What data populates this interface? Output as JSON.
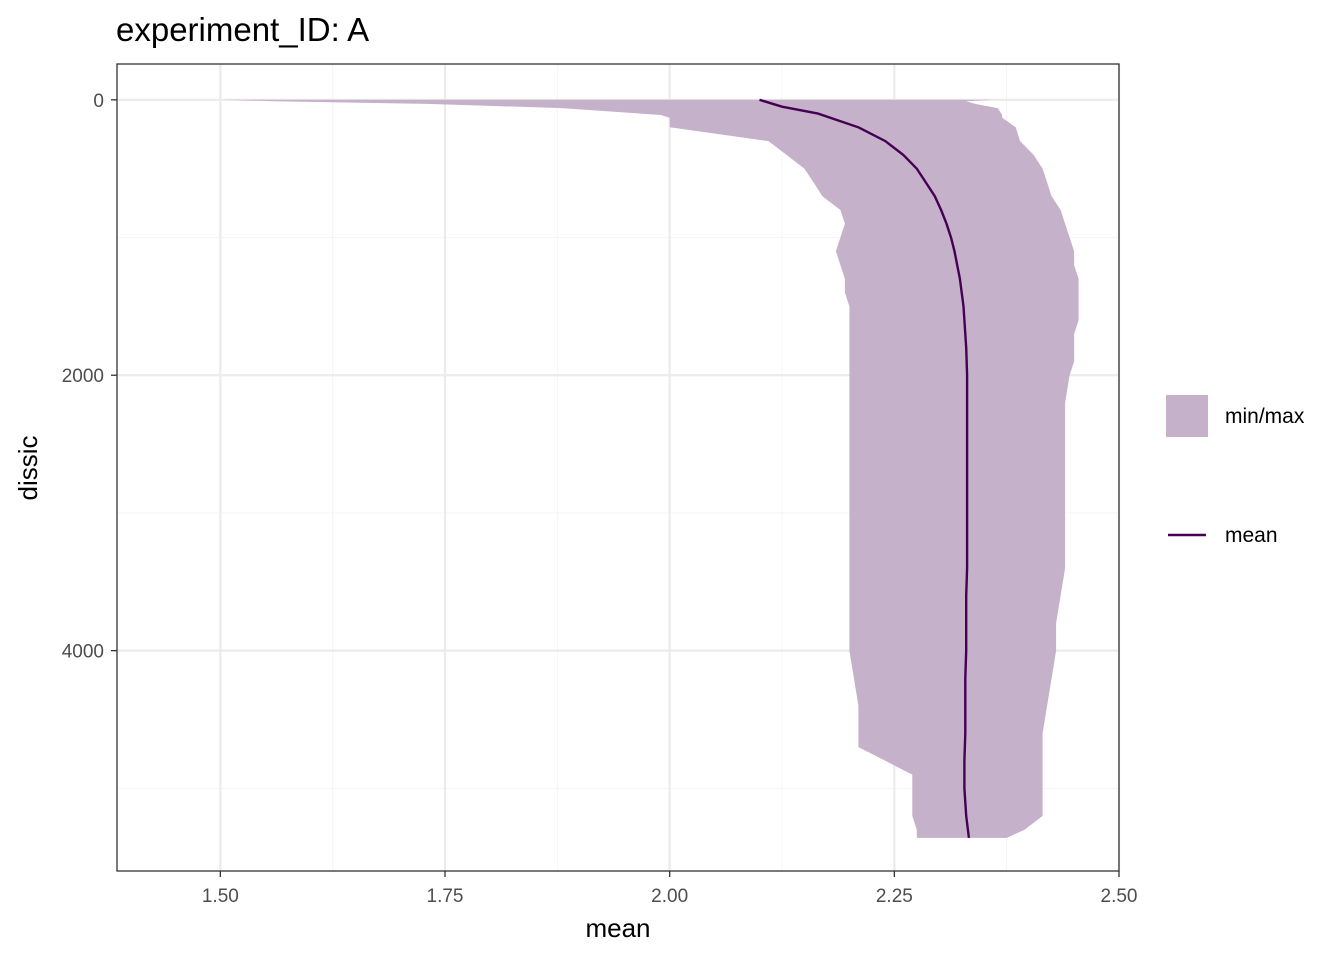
{
  "chart_data": {
    "type": "area",
    "title": "experiment_ID: A",
    "xlabel": "mean",
    "ylabel": "dissic",
    "xlim": [
      1.385,
      2.5
    ],
    "ylim": [
      5600,
      -260
    ],
    "y_reversed": true,
    "x_ticks": [
      1.5,
      1.75,
      2.0,
      2.25,
      2.5
    ],
    "x_tick_labels": [
      "1.50",
      "1.75",
      "2.00",
      "2.25",
      "2.50"
    ],
    "y_ticks": [
      0,
      2000,
      4000
    ],
    "y_tick_labels": [
      "0",
      "2000",
      "4000"
    ],
    "grid": true,
    "colors": {
      "ribbon": "#c6b1cb",
      "line": "#440154",
      "major_grid": "#ebebeb",
      "minor_grid": "#f5f5f5",
      "panel_border": "#333333"
    },
    "legend": {
      "position": "right",
      "entries": [
        {
          "label": "min/max",
          "kind": "ribbon"
        },
        {
          "label": "mean",
          "kind": "line"
        }
      ]
    },
    "series": [
      {
        "name": "min/max",
        "kind": "ribbon",
        "y": [
          0,
          10,
          30,
          60,
          110,
          130,
          200,
          300,
          400,
          500,
          600,
          700,
          750,
          800,
          900,
          1000,
          1100,
          1200,
          1300,
          1400,
          1500,
          1600,
          1700,
          1800,
          1900,
          2000,
          2200,
          2400,
          2600,
          2800,
          3000,
          3200,
          3400,
          3600,
          3800,
          4000,
          4200,
          4400,
          4600,
          4700,
          4800,
          4900,
          5000,
          5100,
          5200,
          5300,
          5360
        ],
        "ymin": [
          1.5,
          1.56,
          1.73,
          1.88,
          1.99,
          2.0,
          2.0,
          2.11,
          2.13,
          2.15,
          2.16,
          2.17,
          2.18,
          2.19,
          2.195,
          2.19,
          2.185,
          2.19,
          2.195,
          2.195,
          2.2,
          2.2,
          2.2,
          2.2,
          2.2,
          2.2,
          2.2,
          2.2,
          2.2,
          2.2,
          2.2,
          2.2,
          2.2,
          2.2,
          2.2,
          2.2,
          2.205,
          2.21,
          2.21,
          2.21,
          2.24,
          2.27,
          2.27,
          2.27,
          2.27,
          2.275,
          2.275
        ],
        "ymax": [
          2.36,
          2.33,
          2.34,
          2.365,
          2.37,
          2.37,
          2.385,
          2.39,
          2.405,
          2.415,
          2.42,
          2.425,
          2.43,
          2.435,
          2.44,
          2.445,
          2.45,
          2.45,
          2.455,
          2.455,
          2.455,
          2.455,
          2.45,
          2.45,
          2.45,
          2.445,
          2.44,
          2.44,
          2.44,
          2.44,
          2.44,
          2.44,
          2.44,
          2.435,
          2.43,
          2.43,
          2.425,
          2.42,
          2.415,
          2.415,
          2.415,
          2.415,
          2.415,
          2.415,
          2.415,
          2.395,
          2.375
        ]
      },
      {
        "name": "mean",
        "kind": "line",
        "y": [
          0,
          50,
          100,
          200,
          300,
          400,
          500,
          600,
          700,
          800,
          900,
          1000,
          1100,
          1200,
          1300,
          1400,
          1500,
          1600,
          1700,
          1800,
          2000,
          2200,
          2400,
          2600,
          2800,
          3000,
          3200,
          3400,
          3600,
          3800,
          4000,
          4200,
          4400,
          4600,
          4800,
          5000,
          5200,
          5360
        ],
        "x": [
          2.1,
          2.125,
          2.165,
          2.21,
          2.24,
          2.26,
          2.275,
          2.285,
          2.295,
          2.302,
          2.308,
          2.313,
          2.317,
          2.32,
          2.323,
          2.325,
          2.327,
          2.328,
          2.329,
          2.33,
          2.331,
          2.331,
          2.331,
          2.331,
          2.331,
          2.331,
          2.331,
          2.331,
          2.33,
          2.33,
          2.33,
          2.329,
          2.329,
          2.329,
          2.328,
          2.328,
          2.33,
          2.333
        ]
      }
    ]
  }
}
